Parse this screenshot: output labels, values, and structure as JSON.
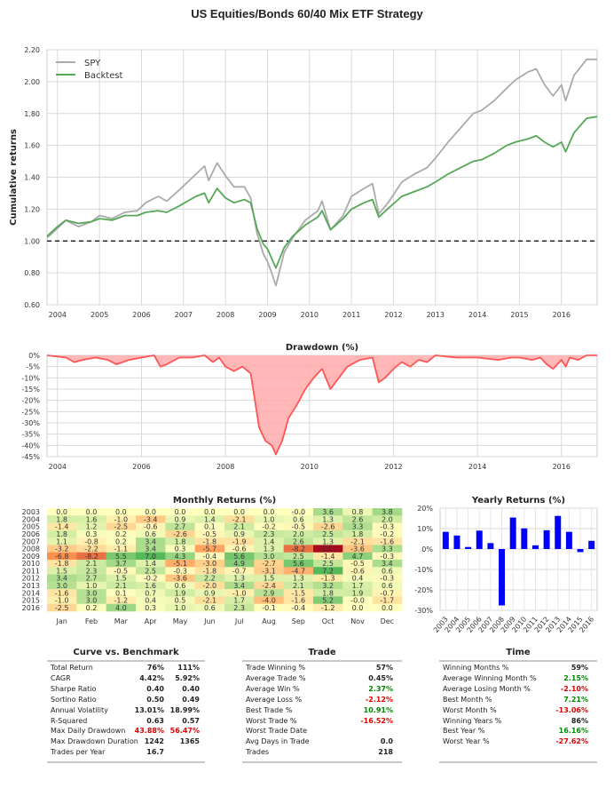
{
  "title": "US Equities/Bonds 60/40 Mix ETF Strategy",
  "colors": {
    "spy": "#aaaaaa",
    "backtest": "#55a855",
    "drawdown_line": "#ff5555",
    "drawdown_fill": "#ffaaaa",
    "yearly_bar": "#0000ff",
    "pos_value": "#008800",
    "neg_value": "#dd0000"
  },
  "chart_data": [
    {
      "id": "cumulative",
      "type": "line",
      "title": "",
      "xlabel": "",
      "ylabel": "Cumulative returns",
      "ylim": [
        0.6,
        2.2
      ],
      "yticks": [
        "0.60",
        "0.80",
        "1.00",
        "1.20",
        "1.40",
        "1.60",
        "1.80",
        "2.00",
        "2.20"
      ],
      "xlim": [
        2003.75,
        2016.85
      ],
      "xticks": [
        "2004",
        "2005",
        "2006",
        "2007",
        "2008",
        "2009",
        "2010",
        "2011",
        "2012",
        "2013",
        "2014",
        "2015",
        "2016"
      ],
      "reference_line": 1.0,
      "legend": "top-left",
      "grid": true,
      "series": [
        {
          "name": "SPY",
          "x": [
            2003.75,
            2004.0,
            2004.2,
            2004.5,
            2004.8,
            2005.0,
            2005.3,
            2005.6,
            2005.9,
            2006.1,
            2006.4,
            2006.6,
            2006.9,
            2007.1,
            2007.3,
            2007.5,
            2007.6,
            2007.8,
            2008.0,
            2008.2,
            2008.45,
            2008.6,
            2008.75,
            2008.9,
            2009.0,
            2009.1,
            2009.2,
            2009.4,
            2009.6,
            2009.9,
            2010.2,
            2010.3,
            2010.5,
            2010.8,
            2011.0,
            2011.3,
            2011.5,
            2011.65,
            2011.9,
            2012.2,
            2012.5,
            2012.8,
            2013.0,
            2013.3,
            2013.6,
            2013.9,
            2014.1,
            2014.4,
            2014.7,
            2014.9,
            2015.2,
            2015.4,
            2015.6,
            2015.8,
            2016.0,
            2016.1,
            2016.3,
            2016.6,
            2016.85
          ],
          "y": [
            1.02,
            1.08,
            1.13,
            1.09,
            1.12,
            1.16,
            1.14,
            1.18,
            1.19,
            1.24,
            1.28,
            1.25,
            1.32,
            1.37,
            1.42,
            1.47,
            1.38,
            1.49,
            1.41,
            1.34,
            1.34,
            1.27,
            1.05,
            0.92,
            0.87,
            0.8,
            0.72,
            0.93,
            1.02,
            1.13,
            1.19,
            1.25,
            1.07,
            1.16,
            1.28,
            1.33,
            1.36,
            1.17,
            1.25,
            1.37,
            1.42,
            1.46,
            1.52,
            1.62,
            1.71,
            1.8,
            1.82,
            1.88,
            1.96,
            2.01,
            2.06,
            2.08,
            1.98,
            1.91,
            1.98,
            1.88,
            2.04,
            2.14,
            2.14
          ]
        },
        {
          "name": "Backtest",
          "x": [
            2003.75,
            2004.0,
            2004.2,
            2004.5,
            2004.8,
            2005.0,
            2005.3,
            2005.6,
            2005.9,
            2006.1,
            2006.4,
            2006.6,
            2006.9,
            2007.1,
            2007.3,
            2007.5,
            2007.6,
            2007.8,
            2008.0,
            2008.2,
            2008.45,
            2008.6,
            2008.75,
            2008.9,
            2009.0,
            2009.1,
            2009.2,
            2009.4,
            2009.6,
            2009.9,
            2010.2,
            2010.3,
            2010.5,
            2010.8,
            2011.0,
            2011.3,
            2011.5,
            2011.65,
            2011.9,
            2012.2,
            2012.5,
            2012.8,
            2013.0,
            2013.3,
            2013.6,
            2013.9,
            2014.1,
            2014.4,
            2014.7,
            2014.9,
            2015.2,
            2015.4,
            2015.6,
            2015.8,
            2016.0,
            2016.1,
            2016.3,
            2016.6,
            2016.85
          ],
          "y": [
            1.03,
            1.09,
            1.13,
            1.11,
            1.12,
            1.14,
            1.13,
            1.16,
            1.16,
            1.18,
            1.19,
            1.18,
            1.22,
            1.25,
            1.28,
            1.3,
            1.24,
            1.33,
            1.27,
            1.24,
            1.26,
            1.24,
            1.08,
            0.98,
            0.95,
            0.89,
            0.83,
            0.96,
            1.03,
            1.1,
            1.15,
            1.19,
            1.07,
            1.14,
            1.2,
            1.24,
            1.26,
            1.15,
            1.21,
            1.28,
            1.31,
            1.34,
            1.37,
            1.42,
            1.46,
            1.5,
            1.51,
            1.55,
            1.6,
            1.62,
            1.64,
            1.66,
            1.62,
            1.59,
            1.62,
            1.56,
            1.68,
            1.77,
            1.78
          ]
        }
      ]
    },
    {
      "id": "drawdown",
      "type": "area",
      "title": "Drawdown (%)",
      "xlabel": "",
      "ylabel": "",
      "ylim": [
        -45,
        0
      ],
      "yticks": [
        "0%",
        "-5%",
        "-10%",
        "-15%",
        "-20%",
        "-25%",
        "-30%",
        "-35%",
        "-40%",
        "-45%"
      ],
      "xlim": [
        2003.75,
        2016.85
      ],
      "xticks": [
        "2004",
        "2006",
        "2008",
        "2010",
        "2012",
        "2014",
        "2016"
      ],
      "grid": true,
      "x": [
        2003.75,
        2004.2,
        2004.4,
        2004.6,
        2004.9,
        2005.2,
        2005.4,
        2005.7,
        2006.0,
        2006.3,
        2006.45,
        2006.6,
        2006.9,
        2007.2,
        2007.5,
        2007.7,
        2007.85,
        2008.0,
        2008.2,
        2008.4,
        2008.6,
        2008.7,
        2008.8,
        2008.95,
        2009.1,
        2009.2,
        2009.35,
        2009.5,
        2009.7,
        2009.9,
        2010.1,
        2010.3,
        2010.5,
        2010.7,
        2010.9,
        2011.2,
        2011.5,
        2011.65,
        2011.8,
        2012.0,
        2012.2,
        2012.4,
        2012.6,
        2012.8,
        2013.0,
        2013.5,
        2014.0,
        2014.5,
        2014.8,
        2015.0,
        2015.3,
        2015.5,
        2015.65,
        2015.8,
        2016.0,
        2016.1,
        2016.2,
        2016.4,
        2016.6,
        2016.85
      ],
      "values": [
        0,
        -1,
        -3,
        -2,
        -1,
        -2,
        -4,
        -2,
        -1,
        0,
        -5,
        -4,
        -1,
        -1,
        0,
        -3,
        -1,
        -5,
        -7,
        -5,
        -8,
        -20,
        -32,
        -38,
        -40,
        -44,
        -38,
        -28,
        -22,
        -15,
        -10,
        -6,
        -15,
        -10,
        -5,
        -2,
        -1,
        -12,
        -10,
        -6,
        -3,
        -5,
        -2,
        -3,
        0,
        -1,
        -1,
        -2,
        -1,
        -1,
        -2,
        -1,
        -4,
        -6,
        -2,
        -5,
        -1,
        -2,
        0,
        0
      ]
    },
    {
      "id": "monthly",
      "type": "heatmap",
      "title": "Monthly Returns (%)",
      "columns": [
        "Jan",
        "Feb",
        "Mar",
        "Apr",
        "May",
        "Jun",
        "Jul",
        "Aug",
        "Sep",
        "Oct",
        "Nov",
        "Dec"
      ],
      "rows": [
        "2003",
        "2004",
        "2005",
        "2006",
        "2007",
        "2008",
        "2009",
        "2010",
        "2011",
        "2012",
        "2013",
        "2014",
        "2015",
        "2016"
      ],
      "values": [
        [
          "0.0",
          "0.0",
          "0.0",
          "0.0",
          "0.0",
          "0.0",
          "0.0",
          "0.0",
          "-0.0",
          "3.6",
          "0.8",
          "3.8"
        ],
        [
          "1.8",
          "1.6",
          "-1.0",
          "-3.4",
          "0.9",
          "1.4",
          "-2.1",
          "1.0",
          "0.6",
          "1.3",
          "2.6",
          "2.0"
        ],
        [
          "-1.4",
          "1.2",
          "-2.5",
          "-0.6",
          "2.7",
          "0.1",
          "2.1",
          "-0.2",
          "-0.5",
          "-2.6",
          "3.3",
          "-0.3"
        ],
        [
          "1.8",
          "0.3",
          "0.2",
          "0.6",
          "-2.6",
          "-0.5",
          "0.9",
          "2.3",
          "2.0",
          "2.5",
          "1.8",
          "-0.2"
        ],
        [
          "1.1",
          "-0.8",
          "0.2",
          "3.4",
          "1.8",
          "-1.8",
          "-1.9",
          "1.4",
          "2.6",
          "1.3",
          "-2.1",
          "-1.6"
        ],
        [
          "-3.2",
          "-2.2",
          "-1.1",
          "3.4",
          "0.3",
          "-5.7",
          "-0.6",
          "1.3",
          "-8.2",
          "-13.1",
          "-3.6",
          "3.3"
        ],
        [
          "-6.8",
          "-8.2",
          "5.5",
          "7.0",
          "4.3",
          "-0.4",
          "5.6",
          "3.0",
          "2.5",
          "-1.4",
          "4.7",
          "-0.3"
        ],
        [
          "-1.8",
          "2.1",
          "3.7",
          "1.4",
          "-5.1",
          "-3.0",
          "4.9",
          "-2.7",
          "5.6",
          "2.5",
          "-0.5",
          "3.4"
        ],
        [
          "1.5",
          "2.3",
          "-0.5",
          "2.5",
          "-0.3",
          "-1.8",
          "-0.7",
          "-3.1",
          "-4.7",
          "7.2",
          "-0.6",
          "0.6"
        ],
        [
          "3.4",
          "2.7",
          "1.5",
          "-0.2",
          "-3.6",
          "2.2",
          "1.3",
          "1.5",
          "1.3",
          "-1.3",
          "0.4",
          "-0.3"
        ],
        [
          "3.0",
          "1.0",
          "2.1",
          "1.6",
          "0.6",
          "-2.0",
          "3.4",
          "-2.4",
          "2.1",
          "3.2",
          "1.7",
          "0.6"
        ],
        [
          "-1.6",
          "3.0",
          "0.1",
          "0.7",
          "1.9",
          "0.9",
          "-1.0",
          "2.9",
          "-1.5",
          "1.8",
          "1.9",
          "-0.7"
        ],
        [
          "-1.0",
          "3.0",
          "-1.2",
          "0.4",
          "0.5",
          "-2.1",
          "1.7",
          "-4.0",
          "-1.6",
          "5.2",
          "-0.0",
          "-1.7"
        ],
        [
          "-2.5",
          "0.2",
          "4.0",
          "0.3",
          "1.0",
          "0.6",
          "2.3",
          "-0.1",
          "-0.4",
          "-1.2",
          "0.0",
          "0.0"
        ]
      ]
    },
    {
      "id": "yearly",
      "type": "bar",
      "title": "Yearly Returns (%)",
      "xlabel": "",
      "ylabel": "",
      "ylim": [
        -30,
        20
      ],
      "yticks": [
        "20%",
        "10%",
        "0%",
        "-10%",
        "-20%",
        "-30%"
      ],
      "categories": [
        "2003",
        "2004",
        "2005",
        "2006",
        "2007",
        "2008",
        "2009",
        "2010",
        "2011",
        "2012",
        "2013",
        "2014",
        "2015",
        "2016"
      ],
      "values": [
        8.4,
        6.6,
        1.0,
        9.0,
        2.9,
        -27.6,
        15.4,
        10.1,
        1.8,
        9.2,
        16.2,
        8.4,
        -1.5,
        4.0
      ],
      "grid": true
    }
  ],
  "stats": {
    "curve": {
      "title": "Curve vs. Benchmark",
      "rows": [
        {
          "label": "Total Return",
          "v1": "76%",
          "v2": "111%",
          "c1": "",
          "c2": ""
        },
        {
          "label": "CAGR",
          "v1": "4.42%",
          "v2": "5.92%",
          "c1": "",
          "c2": ""
        },
        {
          "label": "Sharpe Ratio",
          "v1": "0.40",
          "v2": "0.40",
          "c1": "",
          "c2": ""
        },
        {
          "label": "Sortino Ratio",
          "v1": "0.50",
          "v2": "0.49",
          "c1": "",
          "c2": ""
        },
        {
          "label": "Annual Volatility",
          "v1": "13.01%",
          "v2": "18.99%",
          "c1": "",
          "c2": ""
        },
        {
          "label": "R-Squared",
          "v1": "0.63",
          "v2": "0.57",
          "c1": "",
          "c2": ""
        },
        {
          "label": "Max Daily Drawdown",
          "v1": "43.88%",
          "v2": "56.47%",
          "c1": "neg",
          "c2": "neg"
        },
        {
          "label": "Max Drawdown Duration",
          "v1": "1242",
          "v2": "1365",
          "c1": "",
          "c2": ""
        },
        {
          "label": "Trades per Year",
          "v1": "16.7",
          "v2": "",
          "c1": "",
          "c2": ""
        }
      ]
    },
    "trade": {
      "title": "Trade",
      "rows": [
        {
          "label": "Trade Winning %",
          "v1": "57%",
          "c1": ""
        },
        {
          "label": "Average Trade %",
          "v1": "0.45%",
          "c1": ""
        },
        {
          "label": "Average Win %",
          "v1": "2.37%",
          "c1": "pos"
        },
        {
          "label": "Average Loss %",
          "v1": "-2.12%",
          "c1": "neg"
        },
        {
          "label": "Best Trade %",
          "v1": "10.91%",
          "c1": "pos"
        },
        {
          "label": "Worst Trade %",
          "v1": "-16.52%",
          "c1": "neg"
        },
        {
          "label": "Worst Trade Date",
          "v1": "",
          "c1": ""
        },
        {
          "label": "Avg Days in Trade",
          "v1": "0.0",
          "c1": ""
        },
        {
          "label": "Trades",
          "v1": "218",
          "c1": ""
        }
      ]
    },
    "time": {
      "title": "Time",
      "rows": [
        {
          "label": "Winning Months %",
          "v1": "59%",
          "c1": ""
        },
        {
          "label": "Average Winning Month %",
          "v1": "2.15%",
          "c1": "pos"
        },
        {
          "label": "Average Losing Month %",
          "v1": "-2.10%",
          "c1": "neg"
        },
        {
          "label": "Best Month %",
          "v1": "7.21%",
          "c1": "pos"
        },
        {
          "label": "Worst Month %",
          "v1": "-13.06%",
          "c1": "neg"
        },
        {
          "label": "Winning Years %",
          "v1": "86%",
          "c1": ""
        },
        {
          "label": "Best Year %",
          "v1": "16.16%",
          "c1": "pos"
        },
        {
          "label": "Worst Year %",
          "v1": "-27.62%",
          "c1": "neg"
        }
      ]
    }
  }
}
